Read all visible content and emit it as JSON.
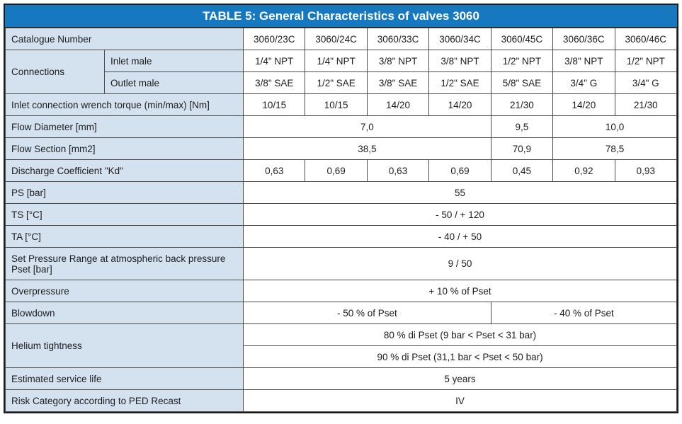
{
  "title": "TABLE 5: General Characteristics of valves 3060",
  "colors": {
    "header_bg": "#1679c0",
    "header_text": "#ffffff",
    "label_bg": "#d4e2f0",
    "border": "#4a4a4a"
  },
  "rows": {
    "catalogue": {
      "label": "Catalogue Number",
      "values": [
        "3060/23C",
        "3060/24C",
        "3060/33C",
        "3060/34C",
        "3060/45C",
        "3060/36C",
        "3060/46C"
      ]
    },
    "connections": {
      "label": "Connections",
      "inlet_label": "Inlet male",
      "inlet_values": [
        "1/4\" NPT",
        "1/4\" NPT",
        "3/8\" NPT",
        "3/8\" NPT",
        "1/2\" NPT",
        "3/8\" NPT",
        "1/2\" NPT"
      ],
      "outlet_label": "Outlet male",
      "outlet_values": [
        "3/8\" SAE",
        "1/2\" SAE",
        "3/8\" SAE",
        "1/2\" SAE",
        "5/8\" SAE",
        "3/4\" G",
        "3/4\" G"
      ]
    },
    "torque": {
      "label": "Inlet connection wrench torque (min/max) [Nm]",
      "values": [
        "10/15",
        "10/15",
        "14/20",
        "14/20",
        "21/30",
        "14/20",
        "21/30"
      ]
    },
    "flow_diameter": {
      "label": "Flow Diameter [mm]",
      "values": [
        "7,0",
        "9,5",
        "10,0"
      ]
    },
    "flow_section": {
      "label": "Flow Section [mm2]",
      "values": [
        "38,5",
        "70,9",
        "78,5"
      ]
    },
    "discharge_coefficient": {
      "label": "Discharge Coefficient \"Kd\"",
      "values": [
        "0,63",
        "0,69",
        "0,63",
        "0,69",
        "0,45",
        "0,92",
        "0,93"
      ]
    },
    "ps": {
      "label": "PS [bar]",
      "value": "55"
    },
    "ts": {
      "label": "TS [°C]",
      "value": "- 50  /  + 120"
    },
    "ta": {
      "label": "TA [°C]",
      "value": "- 40  /  + 50"
    },
    "set_pressure_range": {
      "label": "Set Pressure Range at atmospheric back pressure Pset [bar]",
      "value": "9  /  50"
    },
    "overpressure": {
      "label": "Overpressure",
      "value": "+ 10 % of Pset"
    },
    "blowdown": {
      "label": "Blowdown",
      "values": [
        "- 50 % of Pset",
        "- 40 % of Pset"
      ]
    },
    "helium_tightness": {
      "label": "Helium tightness",
      "values": [
        "80 % di Pset  (9 bar < Pset < 31 bar)",
        "90 % di Pset  (31,1 bar < Pset < 50 bar)"
      ]
    },
    "service_life": {
      "label": "Estimated service life",
      "value": "5 years"
    },
    "risk_category": {
      "label": "Risk Category according to PED Recast",
      "value": "IV"
    }
  }
}
